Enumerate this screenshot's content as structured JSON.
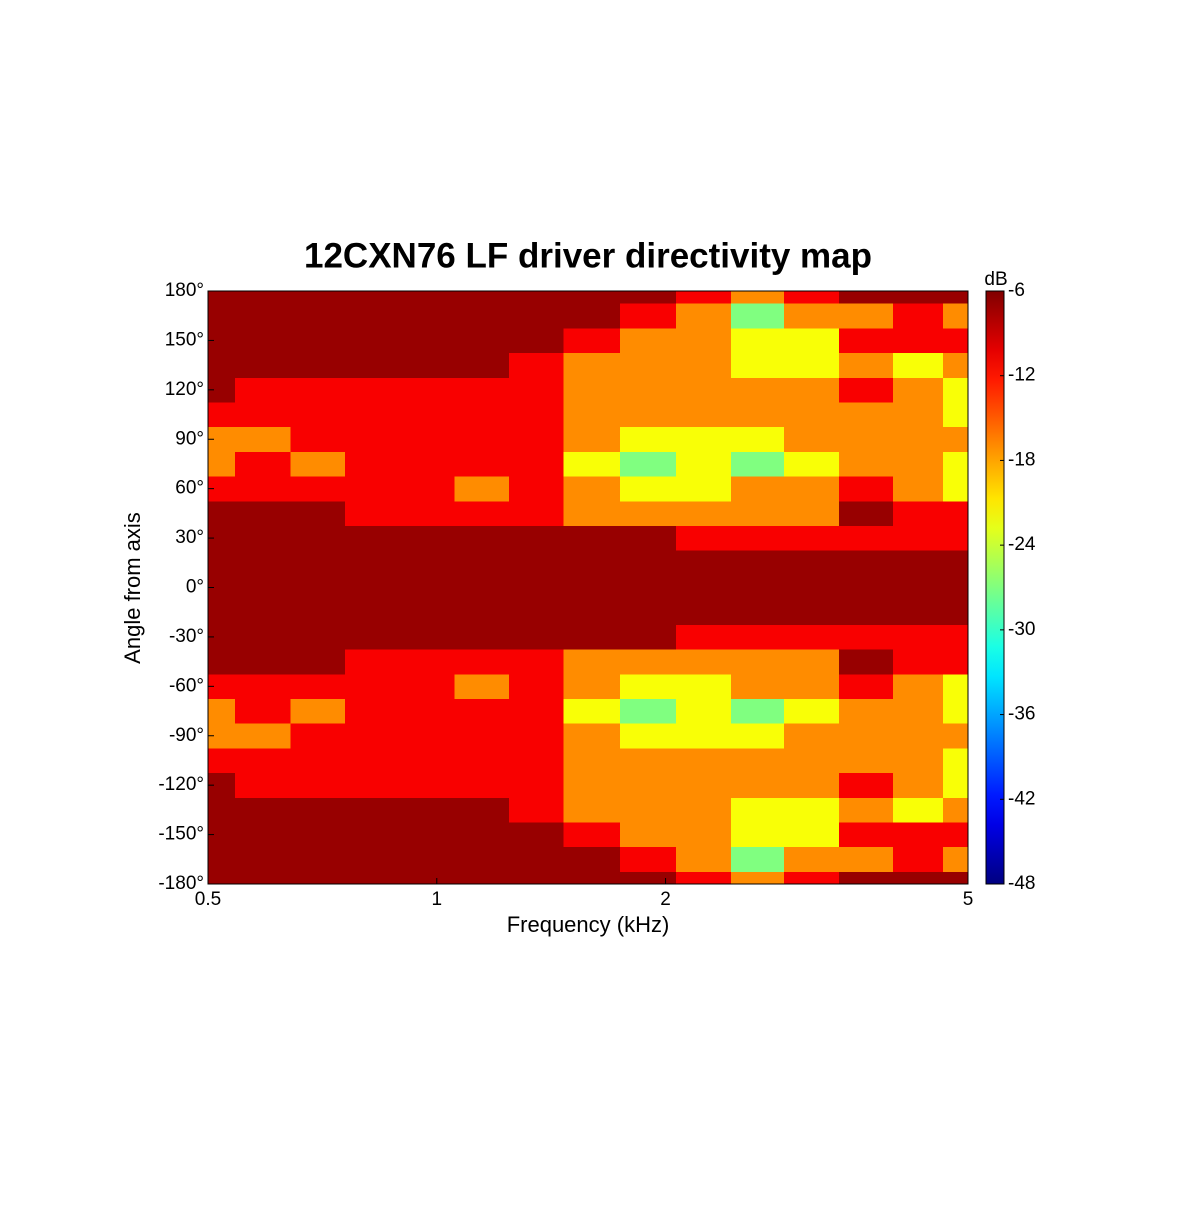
{
  "chart_data": {
    "type": "contour",
    "title": "12CXN76 LF driver directivity map",
    "xlabel": "Frequency (kHz)",
    "ylabel": "Angle from axis",
    "colorbar_label": "dB",
    "xscale": "log",
    "xlim": [
      0.5,
      5
    ],
    "xticks": [
      0.5,
      1,
      2,
      5
    ],
    "ylim": [
      -180,
      180
    ],
    "yticks": [
      {
        "value": 180,
        "label": "180°"
      },
      {
        "value": 150,
        "label": "150°"
      },
      {
        "value": 120,
        "label": "120°"
      },
      {
        "value": 90,
        "label": "90°"
      },
      {
        "value": 60,
        "label": "60°"
      },
      {
        "value": 30,
        "label": "30°"
      },
      {
        "value": 0,
        "label": "0°"
      },
      {
        "value": -30,
        "label": "-30°"
      },
      {
        "value": -60,
        "label": "-60°"
      },
      {
        "value": -90,
        "label": "-90°"
      },
      {
        "value": -120,
        "label": "-120°"
      },
      {
        "value": -150,
        "label": "-150°"
      },
      {
        "value": -180,
        "label": "-180°"
      }
    ],
    "clim": [
      -48,
      -6
    ],
    "cticks": [
      -6,
      -12,
      -18,
      -24,
      -30,
      -36,
      -42,
      -48
    ],
    "colormap": "jet",
    "x": [
      0.5,
      0.59,
      0.7,
      0.82,
      0.97,
      1.15,
      1.35,
      1.6,
      1.9,
      2.25,
      2.65,
      3.1,
      3.7,
      4.3,
      5
    ],
    "y": [
      -180,
      -165,
      -150,
      -135,
      -120,
      -105,
      -90,
      -75,
      -60,
      -45,
      -30,
      -15,
      0,
      15,
      30,
      45,
      60,
      75,
      90,
      105,
      120,
      135,
      150,
      165,
      180
    ],
    "z": [
      [
        -7,
        -7,
        -7,
        -7,
        -7,
        -7,
        -7,
        -7,
        -7,
        -11,
        -17,
        -11,
        -7,
        -7,
        -7
      ],
      [
        -7,
        -7,
        -7,
        -7,
        -7,
        -7,
        -7,
        -7,
        -11,
        -17,
        -27,
        -17,
        -17,
        -11,
        -17
      ],
      [
        -7,
        -7,
        -7,
        -7,
        -7,
        -7,
        -7,
        -11,
        -17,
        -17,
        -22,
        -22,
        -11,
        -11,
        -11
      ],
      [
        -7,
        -7,
        -7,
        -7,
        -7,
        -7,
        -11,
        -17,
        -17,
        -17,
        -22,
        -22,
        -17,
        -22,
        -17
      ],
      [
        -7,
        -11,
        -11,
        -11,
        -11,
        -11,
        -11,
        -17,
        -17,
        -17,
        -17,
        -17,
        -11,
        -17,
        -22
      ],
      [
        -11,
        -11,
        -11,
        -11,
        -11,
        -11,
        -11,
        -17,
        -17,
        -17,
        -17,
        -17,
        -17,
        -17,
        -22
      ],
      [
        -17,
        -17,
        -11,
        -11,
        -11,
        -11,
        -11,
        -17,
        -22,
        -22,
        -22,
        -17,
        -17,
        -17,
        -17
      ],
      [
        -17,
        -11,
        -17,
        -11,
        -11,
        -11,
        -11,
        -22,
        -27,
        -22,
        -27,
        -22,
        -17,
        -17,
        -22
      ],
      [
        -11,
        -11,
        -11,
        -11,
        -11,
        -17,
        -11,
        -17,
        -22,
        -22,
        -17,
        -17,
        -11,
        -17,
        -22
      ],
      [
        -7,
        -7,
        -7,
        -11,
        -11,
        -11,
        -11,
        -17,
        -17,
        -17,
        -17,
        -17,
        -7,
        -11,
        -11
      ],
      [
        -7,
        -7,
        -7,
        -7,
        -7,
        -7,
        -7,
        -7,
        -7,
        -11,
        -11,
        -11,
        -11,
        -11,
        -11
      ],
      [
        -7,
        -7,
        -7,
        -7,
        -7,
        -7,
        -7,
        -7,
        -7,
        -7,
        -7,
        -7,
        -7,
        -7,
        -7
      ],
      [
        -7,
        -7,
        -7,
        -7,
        -7,
        -7,
        -7,
        -7,
        -7,
        -7,
        -7,
        -7,
        -7,
        -7,
        -7
      ],
      [
        -7,
        -7,
        -7,
        -7,
        -7,
        -7,
        -7,
        -7,
        -7,
        -7,
        -7,
        -7,
        -7,
        -7,
        -7
      ],
      [
        -7,
        -7,
        -7,
        -7,
        -7,
        -7,
        -7,
        -7,
        -7,
        -11,
        -11,
        -11,
        -11,
        -11,
        -11
      ],
      [
        -7,
        -7,
        -7,
        -11,
        -11,
        -11,
        -11,
        -17,
        -17,
        -17,
        -17,
        -17,
        -7,
        -11,
        -11
      ],
      [
        -11,
        -11,
        -11,
        -11,
        -11,
        -17,
        -11,
        -17,
        -22,
        -22,
        -17,
        -17,
        -11,
        -17,
        -22
      ],
      [
        -17,
        -11,
        -17,
        -11,
        -11,
        -11,
        -11,
        -22,
        -27,
        -22,
        -27,
        -22,
        -17,
        -17,
        -22
      ],
      [
        -17,
        -17,
        -11,
        -11,
        -11,
        -11,
        -11,
        -17,
        -22,
        -22,
        -22,
        -17,
        -17,
        -17,
        -17
      ],
      [
        -11,
        -11,
        -11,
        -11,
        -11,
        -11,
        -11,
        -17,
        -17,
        -17,
        -17,
        -17,
        -17,
        -17,
        -22
      ],
      [
        -7,
        -11,
        -11,
        -11,
        -11,
        -11,
        -11,
        -17,
        -17,
        -17,
        -17,
        -17,
        -11,
        -17,
        -22
      ],
      [
        -7,
        -7,
        -7,
        -7,
        -7,
        -7,
        -11,
        -17,
        -17,
        -17,
        -22,
        -22,
        -17,
        -22,
        -17
      ],
      [
        -7,
        -7,
        -7,
        -7,
        -7,
        -7,
        -7,
        -11,
        -17,
        -17,
        -22,
        -22,
        -11,
        -11,
        -11
      ],
      [
        -7,
        -7,
        -7,
        -7,
        -7,
        -7,
        -7,
        -7,
        -11,
        -17,
        -27,
        -17,
        -17,
        -11,
        -17
      ],
      [
        -7,
        -7,
        -7,
        -7,
        -7,
        -7,
        -7,
        -7,
        -7,
        -11,
        -17,
        -11,
        -7,
        -7,
        -7
      ]
    ]
  }
}
